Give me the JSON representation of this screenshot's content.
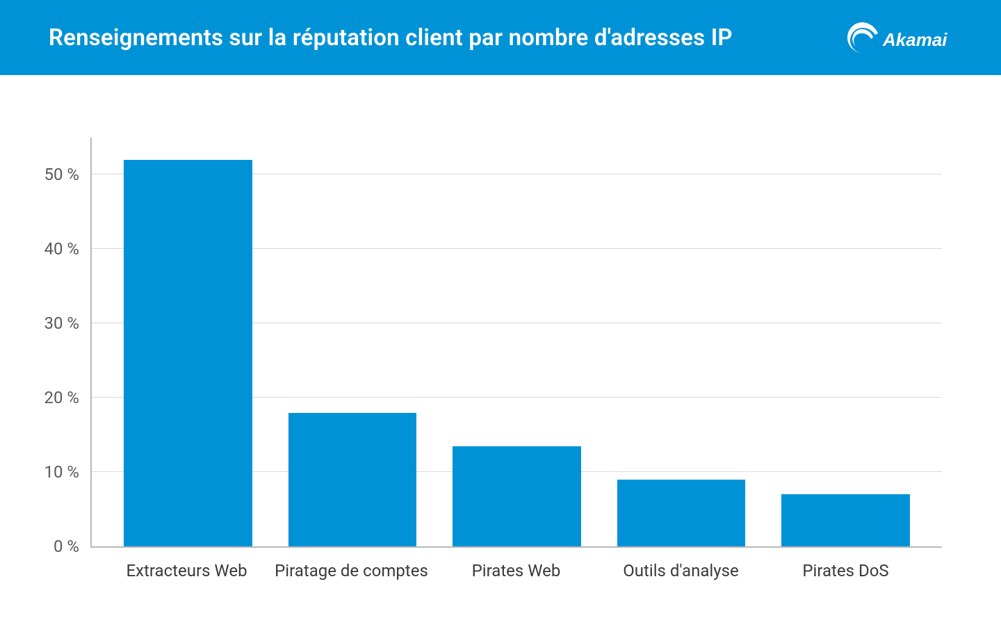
{
  "header": {
    "title": "Renseignements sur la réputation client par nombre d'adresses IP",
    "brand": "Akamai",
    "background_color": "#0092d6",
    "title_color": "#ffffff",
    "title_fontsize": 33
  },
  "chart": {
    "type": "bar",
    "categories": [
      "Extracteurs Web",
      "Piratage de comptes",
      "Pirates Web",
      "Outils d'analyse",
      "Pirates DoS"
    ],
    "values": [
      52,
      18,
      13.5,
      9,
      7
    ],
    "bar_color": "#0092d6",
    "bar_width_pct": 78,
    "ylim": [
      0,
      55
    ],
    "ytick_positions": [
      0,
      10,
      20,
      30,
      40,
      50
    ],
    "ytick_labels": [
      "0 %",
      "10 %",
      "20 %",
      "30 %",
      "40 %",
      "50 %"
    ],
    "grid_color": "#d9d9d9",
    "axis_color": "#b8b8b8",
    "tick_label_color": "#5a5a5a",
    "xlabel_color": "#3a3a3a",
    "tick_fontsize": 24,
    "xlabel_fontsize": 24,
    "background_color": "#ffffff"
  }
}
